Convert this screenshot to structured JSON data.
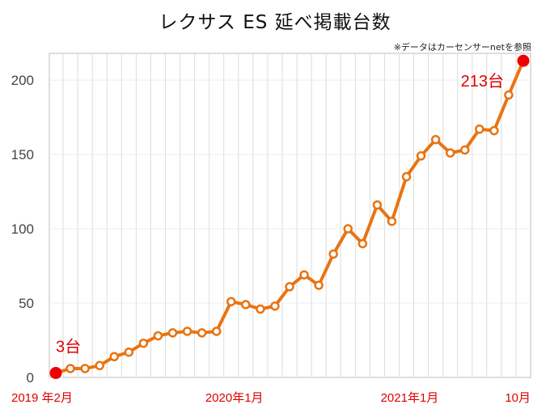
{
  "chart_data": {
    "type": "line",
    "title": "レクサス ES 延べ掲載台数",
    "note": "※データはカーセンサーnetを参照",
    "xlabel": "",
    "ylabel": "",
    "ylim": [
      0,
      218
    ],
    "yticks": [
      0,
      50,
      100,
      150,
      200
    ],
    "x_tick_labels": [
      {
        "index": 0,
        "label": "2019 年2月"
      },
      {
        "index": 11,
        "label": "2020年1月"
      },
      {
        "index": 23,
        "label": "2021年1月"
      },
      {
        "index": 32,
        "label": "10月"
      }
    ],
    "series": [
      {
        "name": "延べ掲載台数",
        "color": "#e87412",
        "values": [
          3,
          6,
          6,
          8,
          14,
          17,
          23,
          28,
          30,
          31,
          30,
          31,
          51,
          49,
          46,
          48,
          61,
          69,
          62,
          83,
          100,
          90,
          116,
          105,
          135,
          149,
          160,
          151,
          153,
          167,
          166,
          190,
          213
        ]
      }
    ],
    "annotations": [
      {
        "index": 0,
        "label": "3台"
      },
      {
        "index": 32,
        "label": "213台"
      }
    ],
    "highlight_color": "#ee0000",
    "grid": true
  }
}
